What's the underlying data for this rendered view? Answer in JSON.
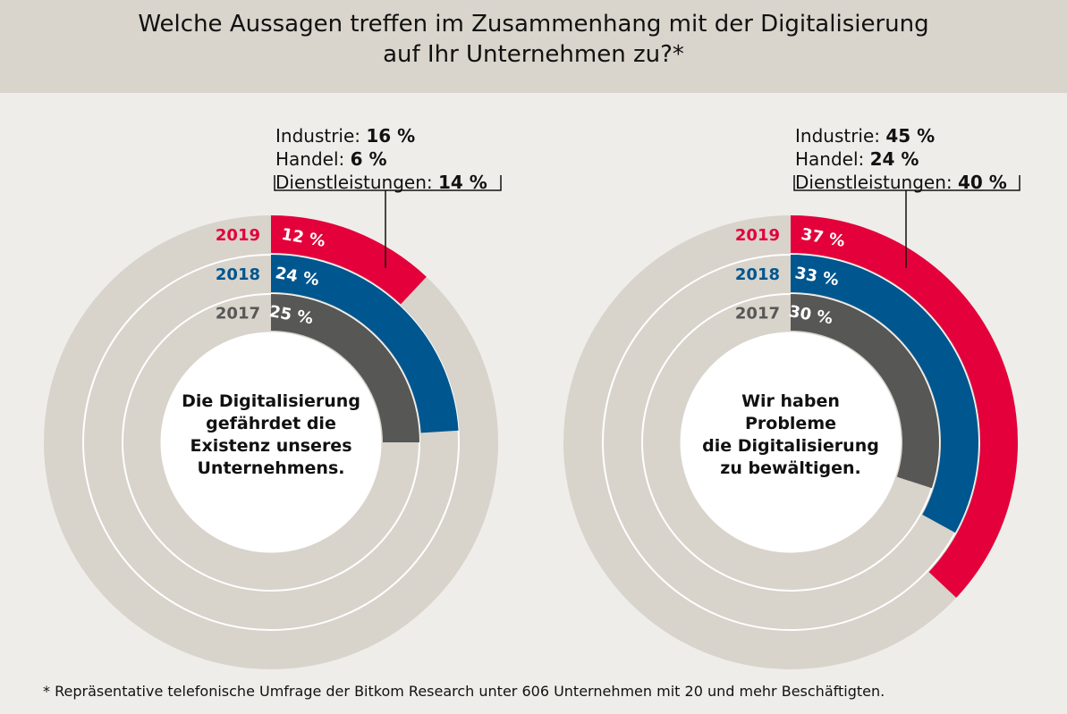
{
  "title_line1": "Welche Aussagen treffen im Zusammenhang mit der Digitalisierung",
  "title_line2": "auf Ihr Unternehmen zu?*",
  "footnote": "*  Repräsentative telefonische Umfrage der Bitkom Research unter 606 Unternehmen mit 20 und mehr Beschäftigten.",
  "colors": {
    "2019": "#e4003a",
    "2018": "#00568f",
    "2017": "#575756",
    "track": "#d8d3cb",
    "background": "#efede9",
    "header": "#d9d4cc"
  },
  "chart_data": [
    {
      "type": "radial-bar",
      "center_label": [
        "Die Digitalisierung",
        "gefährdet die",
        "Existenz unseres",
        "Unternehmens."
      ],
      "series": [
        {
          "name": "2019",
          "value": 12,
          "label": "12 %"
        },
        {
          "name": "2018",
          "value": 24,
          "label": "24 %"
        },
        {
          "name": "2017",
          "value": 25,
          "label": "25 %"
        }
      ],
      "breakdown_2019": [
        {
          "label": "Industrie:",
          "value": "16 %"
        },
        {
          "label": "Handel:",
          "value": "6 %"
        },
        {
          "label": "Dienstleistungen:",
          "value": "14 %"
        }
      ],
      "max": 100
    },
    {
      "type": "radial-bar",
      "center_label": [
        "Wir haben",
        "Probleme",
        "die Digitalisierung",
        "zu bewältigen."
      ],
      "series": [
        {
          "name": "2019",
          "value": 37,
          "label": "37 %"
        },
        {
          "name": "2018",
          "value": 33,
          "label": "33 %"
        },
        {
          "name": "2017",
          "value": 30,
          "label": "30 %"
        }
      ],
      "breakdown_2019": [
        {
          "label": "Industrie:",
          "value": "45 %"
        },
        {
          "label": "Handel:",
          "value": "24 %"
        },
        {
          "label": "Dienstleistungen:",
          "value": "40 %"
        }
      ],
      "max": 100
    }
  ]
}
